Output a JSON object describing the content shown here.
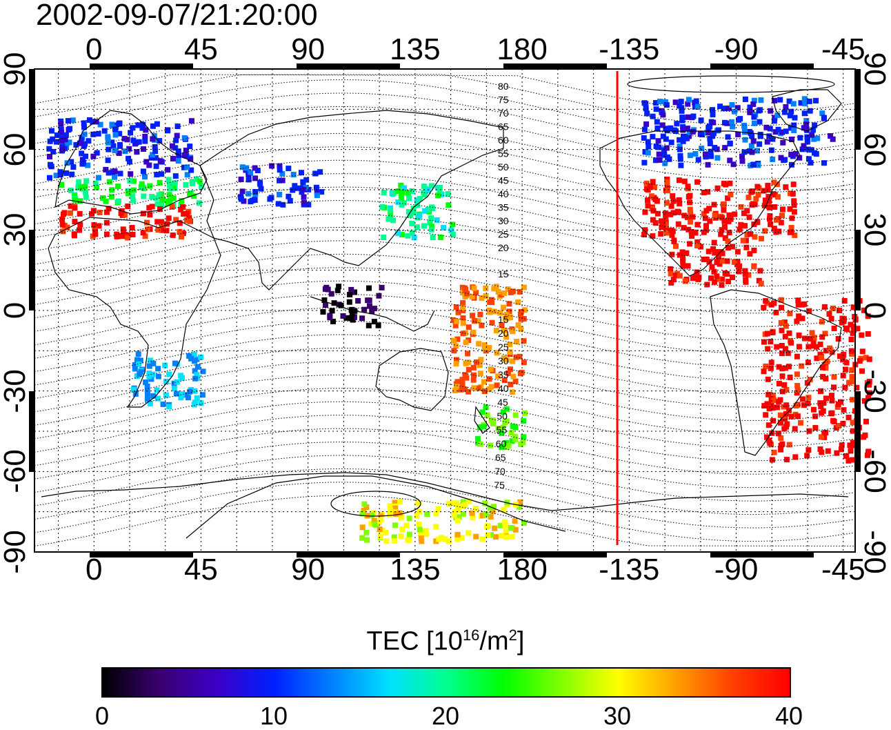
{
  "title": "2002-09-07/21:20:00",
  "map": {
    "lon_range": [
      -25,
      320
    ],
    "lat_range": [
      -90,
      90
    ],
    "top_axis_labels": [
      "0",
      "45",
      "90",
      "135",
      "180",
      "-135",
      "-90",
      "-45"
    ],
    "bottom_axis_labels": [
      "0",
      "45",
      "90",
      "135",
      "180",
      "-135",
      "-90",
      "-45"
    ],
    "left_axis_labels": [
      "90",
      "60",
      "30",
      "0",
      "-30",
      "-60",
      "-90"
    ],
    "right_axis_labels": [
      "90",
      "60",
      "30",
      "0",
      "-30",
      "-60",
      "-90"
    ],
    "terminator_lon": -140,
    "terminator_color": "#ff0000",
    "contour_labels_north": [
      "80",
      "75",
      "70",
      "65",
      "60",
      "55",
      "50",
      "45",
      "40",
      "35",
      "30",
      "25",
      "20",
      "15"
    ],
    "contour_labels_south": [
      "15",
      "20",
      "25",
      "30",
      "35",
      "40",
      "45",
      "50",
      "55",
      "60",
      "65",
      "70",
      "75"
    ]
  },
  "colorbar": {
    "label_prefix": "TEC  [10",
    "label_exp1": "16",
    "label_mid": "/m",
    "label_exp2": "2",
    "label_suffix": "]",
    "min": 0,
    "max": 40,
    "tick_labels": [
      "0",
      "10",
      "20",
      "30",
      "40"
    ],
    "colors": [
      "#000000",
      "#3a0070",
      "#3b00c8",
      "#0020ff",
      "#0080ff",
      "#00e0ff",
      "#00ff90",
      "#00ff00",
      "#80ff00",
      "#ffff00",
      "#ffa000",
      "#ff4000",
      "#ff0000"
    ]
  },
  "chart_data": {
    "type": "heatmap",
    "title": "2002-09-07/21:20:00",
    "xlabel": "",
    "ylabel": "",
    "xlim": [
      -25,
      320
    ],
    "ylim": [
      -90,
      90
    ],
    "value_label": "TEC  [10^16/m^2]",
    "value_range": [
      0,
      40
    ],
    "regions": [
      {
        "lon": [
          -20,
          40
        ],
        "lat": [
          50,
          72
        ],
        "value": 10
      },
      {
        "lon": [
          -15,
          45
        ],
        "lat": [
          40,
          50
        ],
        "value": 22
      },
      {
        "lon": [
          -15,
          40
        ],
        "lat": [
          28,
          40
        ],
        "value": 40
      },
      {
        "lon": [
          60,
          95
        ],
        "lat": [
          40,
          55
        ],
        "value": 10
      },
      {
        "lon": [
          120,
          150
        ],
        "lat": [
          28,
          48
        ],
        "value": 20
      },
      {
        "lon": [
          95,
          120
        ],
        "lat": [
          -5,
          10
        ],
        "value": 2
      },
      {
        "lon": [
          150,
          180
        ],
        "lat": [
          -30,
          10
        ],
        "value": 35
      },
      {
        "lon": [
          160,
          180
        ],
        "lat": [
          -50,
          -35
        ],
        "value": 25
      },
      {
        "lon": [
          -130,
          -65
        ],
        "lat": [
          28,
          50
        ],
        "value": 40
      },
      {
        "lon": [
          -120,
          -80
        ],
        "lat": [
          10,
          28
        ],
        "value": 40
      },
      {
        "lon": [
          -80,
          -35
        ],
        "lat": [
          -55,
          5
        ],
        "value": 40
      },
      {
        "lon": [
          -130,
          -50
        ],
        "lat": [
          55,
          80
        ],
        "value": 10
      },
      {
        "lon": [
          15,
          45
        ],
        "lat": [
          -35,
          -15
        ],
        "value": 15
      },
      {
        "lon": [
          110,
          180
        ],
        "lat": [
          -85,
          -70
        ],
        "value": 30
      }
    ]
  }
}
